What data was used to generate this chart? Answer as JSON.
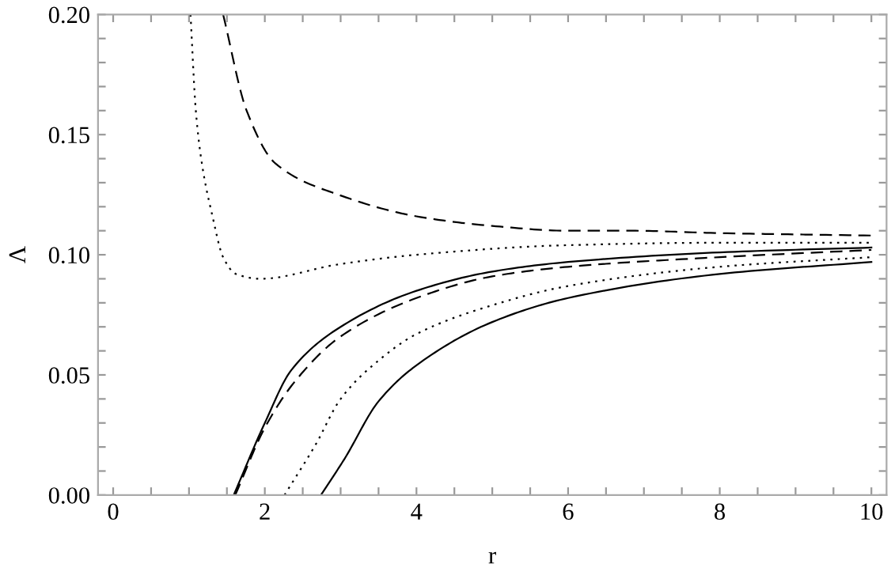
{
  "chart_data": {
    "type": "line",
    "xlabel": "r",
    "ylabel": "Λ",
    "xlim": [
      -0.2,
      10.2
    ],
    "ylim": [
      0,
      0.2
    ],
    "xticks": [
      0,
      {
        "value": 0.5,
        "label": null
      },
      {
        "value": 1,
        "label": null
      },
      {
        "value": 1.5,
        "label": null
      },
      2,
      {
        "value": 2.5,
        "label": null
      },
      {
        "value": 3,
        "label": null
      },
      {
        "value": 3.5,
        "label": null
      },
      4,
      {
        "value": 4.5,
        "label": null
      },
      {
        "value": 5,
        "label": null
      },
      {
        "value": 5.5,
        "label": null
      },
      6,
      {
        "value": 6.5,
        "label": null
      },
      {
        "value": 7,
        "label": null
      },
      {
        "value": 7.5,
        "label": null
      },
      8,
      {
        "value": 8.5,
        "label": null
      },
      {
        "value": 9,
        "label": null
      },
      {
        "value": 9.5,
        "label": null
      },
      10
    ],
    "yticks": [
      {
        "value": 0,
        "label": "0.00"
      },
      {
        "value": 0.01,
        "label": null
      },
      {
        "value": 0.02,
        "label": null
      },
      {
        "value": 0.03,
        "label": null
      },
      {
        "value": 0.04,
        "label": null
      },
      {
        "value": 0.05,
        "label": "0.05"
      },
      {
        "value": 0.06,
        "label": null
      },
      {
        "value": 0.07,
        "label": null
      },
      {
        "value": 0.08,
        "label": null
      },
      {
        "value": 0.09,
        "label": null
      },
      {
        "value": 0.1,
        "label": "0.10"
      },
      {
        "value": 0.11,
        "label": null
      },
      {
        "value": 0.12,
        "label": null
      },
      {
        "value": 0.13,
        "label": null
      },
      {
        "value": 0.14,
        "label": null
      },
      {
        "value": 0.15,
        "label": "0.15"
      },
      {
        "value": 0.16,
        "label": null
      },
      {
        "value": 0.17,
        "label": null
      },
      {
        "value": 0.18,
        "label": null
      },
      {
        "value": 0.19,
        "label": null
      },
      {
        "value": 0.2,
        "label": "0.20"
      }
    ],
    "grid": false,
    "marker": "none",
    "series": [
      {
        "color": "#000000",
        "line_style": "dashed",
        "x": [
          1.45,
          1.76,
          2.14,
          2.97,
          4,
          5,
          6,
          6.83,
          8,
          10
        ],
        "values": [
          0.2,
          0.16,
          0.138,
          0.125,
          0.116,
          0.112,
          0.11,
          0.11,
          0.109,
          0.108
        ]
      },
      {
        "color": "#000000",
        "line_style": "dotted",
        "x": [
          1.02,
          1.09,
          1.17,
          1.31,
          1.45,
          1.62,
          1.94,
          2.97,
          4,
          6,
          8,
          10
        ],
        "values": [
          0.2,
          0.16,
          0.138,
          0.116,
          0.099,
          0.092,
          0.09,
          0.096,
          0.1,
          0.104,
          0.105,
          0.105
        ]
      },
      {
        "color": "#000000",
        "line_style": "solid",
        "x": [
          1.59,
          2,
          2.35,
          3,
          4,
          5,
          6,
          8,
          10
        ],
        "values": [
          0,
          0.03,
          0.052,
          0.07,
          0.085,
          0.093,
          0.097,
          0.101,
          0.103
        ]
      },
      {
        "color": "#000000",
        "line_style": "dashed",
        "x": [
          1.61,
          2,
          2.39,
          3,
          4,
          5,
          6,
          8,
          10
        ],
        "values": [
          0,
          0.028,
          0.047,
          0.066,
          0.082,
          0.091,
          0.095,
          0.099,
          0.102
        ]
      },
      {
        "color": "#000000",
        "line_style": "dotted",
        "x": [
          2.26,
          2.67,
          3,
          3.5,
          4,
          5,
          6,
          8,
          10
        ],
        "values": [
          0,
          0.021,
          0.04,
          0.056,
          0.067,
          0.079,
          0.087,
          0.095,
          0.099
        ]
      },
      {
        "color": "#000000",
        "line_style": "solid",
        "x": [
          2.74,
          3.05,
          3.5,
          4,
          5,
          6,
          8,
          10
        ],
        "values": [
          0,
          0.015,
          0.039,
          0.054,
          0.072,
          0.082,
          0.092,
          0.097
        ]
      }
    ]
  }
}
